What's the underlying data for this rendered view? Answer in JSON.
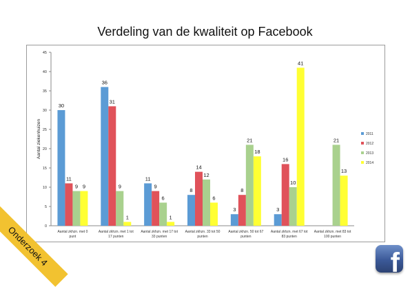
{
  "chart_data": {
    "type": "bar",
    "title": "Verdeling van de kwaliteit op Facebook",
    "ylabel": "Aantal ziekenhuizen",
    "xlabel": "",
    "ylim": [
      0,
      45
    ],
    "yticks": [
      0,
      5,
      10,
      15,
      20,
      25,
      30,
      35,
      40,
      45
    ],
    "grid": false,
    "legend_position": "right",
    "categories": [
      [
        "Aantal zkhzn. met 0",
        "punt"
      ],
      [
        "Aantal zkhzn. met 1 tot",
        "17 punten"
      ],
      [
        "Aantal zkhzn. met 17 tot",
        "33 punten"
      ],
      [
        "Aantal zkhzn. 33 tot 50",
        "punten"
      ],
      [
        "Aantal zkhzn. 50 tot 67",
        "punten"
      ],
      [
        "Aantal zkhzn. met 67 tot",
        "83 punten"
      ],
      [
        "Aantal zkhzn. met 83 tot",
        "100 punten"
      ]
    ],
    "series": [
      {
        "name": "2011",
        "color": "#5b9bd5",
        "values": [
          30,
          36,
          11,
          8,
          3,
          3,
          null
        ]
      },
      {
        "name": "2012",
        "color": "#e0525a",
        "values": [
          11,
          31,
          9,
          14,
          8,
          16,
          null
        ]
      },
      {
        "name": "2013",
        "color": "#a9d18e",
        "values": [
          9,
          9,
          6,
          12,
          21,
          10,
          21
        ]
      },
      {
        "name": "2014",
        "color": "#ffff33",
        "values": [
          9,
          1,
          1,
          6,
          18,
          41,
          13
        ]
      }
    ]
  },
  "banner": {
    "text": "Onderzoek 4",
    "color": "#f2c230"
  },
  "logo": {
    "icon": "facebook-icon",
    "glyph": "f",
    "color": "#3b5998"
  }
}
